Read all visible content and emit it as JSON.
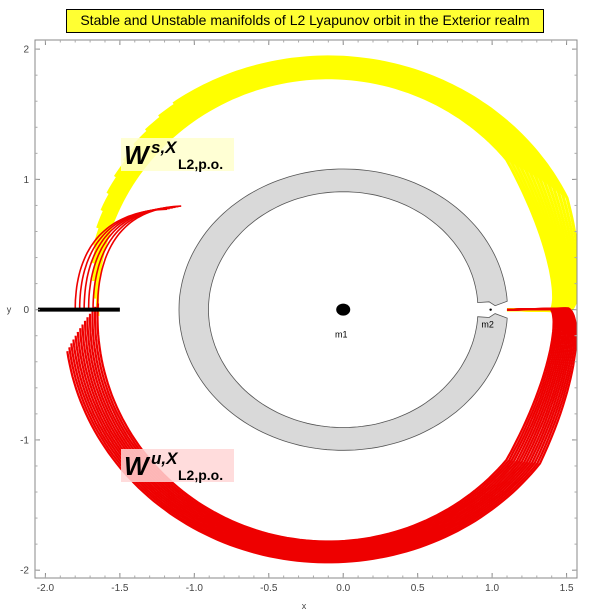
{
  "chart_data": {
    "type": "line",
    "title": "Stable and Unstable manifolds of L2 Lyapunov orbit in the Exterior realm",
    "xlabel": "x",
    "ylabel": "y",
    "xlim": [
      -2.07,
      1.57
    ],
    "ylim": [
      -2.06,
      2.07
    ],
    "xticks": [
      "-2.0",
      "-1.5",
      "-1.0",
      "-0.5",
      "0.0",
      "0.5",
      "1.0",
      "1.5"
    ],
    "xtick_values": [
      -2.0,
      -1.5,
      -1.0,
      -0.5,
      0.0,
      0.5,
      1.0,
      1.5
    ],
    "yticks": [
      "-2",
      "-1",
      "0",
      "1",
      "2"
    ],
    "ytick_values": [
      -2,
      -1,
      0,
      1,
      2
    ],
    "bodies": [
      {
        "name": "m1",
        "x": 0.0,
        "y": 0.0
      },
      {
        "name": "m2",
        "x": 0.99,
        "y": 0.0
      }
    ],
    "series": [
      {
        "name": "stable",
        "color": "#ffff00",
        "label_main": "W",
        "label_sup": "s,X",
        "label_sub": "L2,p.o."
      },
      {
        "name": "unstable",
        "color": "#ee0000",
        "label_main": "W",
        "label_sup": "u,X",
        "label_sub": "L2,p.o."
      }
    ],
    "forbidden_region": {
      "color": "#d9d9d9",
      "outer_x": [
        -1.12,
        1.1
      ],
      "inner_x": [
        -0.9,
        0.9
      ]
    },
    "section_line": {
      "x": [
        -2.05,
        -1.5
      ],
      "y": 0.0,
      "color": "#000000"
    },
    "grid": false
  }
}
